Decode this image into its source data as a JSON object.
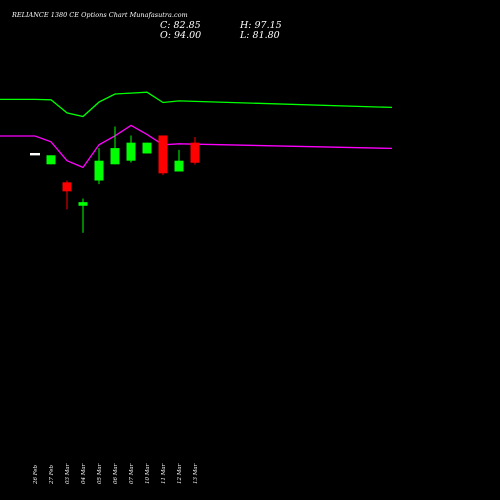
{
  "chart_data": {
    "type": "candlestick",
    "title": "RELIANCE 1380  CE Options  Chart  Munafasutra.com",
    "ohlc_readout": {
      "close": "C: 82.85",
      "open": "O: 94.00",
      "high": "H: 97.15",
      "low": "L: 81.80"
    },
    "categories": [
      "26 Feb",
      "27 Feb",
      "03 Mar",
      "04 Mar",
      "05 Mar",
      "06 Mar",
      "07 Mar",
      "10 Mar",
      "11 Mar",
      "12 Mar",
      "13 Mar"
    ],
    "candles": [
      {
        "date": "26 Feb",
        "open": 88.0,
        "high": 88.0,
        "low": 88.0,
        "close": 88.0
      },
      {
        "date": "27 Feb",
        "open": 82.0,
        "high": 87.0,
        "low": 82.0,
        "close": 87.0
      },
      {
        "date": "03 Mar",
        "open": 72.0,
        "high": 73.0,
        "low": 57.0,
        "close": 67.0
      },
      {
        "date": "04 Mar",
        "open": 59.0,
        "high": 63.0,
        "low": 44.0,
        "close": 61.0
      },
      {
        "date": "05 Mar",
        "open": 73.0,
        "high": 91.0,
        "low": 71.0,
        "close": 84.0
      },
      {
        "date": "06 Mar",
        "open": 82.0,
        "high": 103.0,
        "low": 82.0,
        "close": 91.0
      },
      {
        "date": "07 Mar",
        "open": 84.0,
        "high": 98.0,
        "low": 83.0,
        "close": 94.0
      },
      {
        "date": "10 Mar",
        "open": 88.0,
        "high": 94.0,
        "low": 88.0,
        "close": 94.0
      },
      {
        "date": "11 Mar",
        "open": 98.0,
        "high": 98.0,
        "low": 76.0,
        "close": 77.0
      },
      {
        "date": "12 Mar",
        "open": 78.0,
        "high": 90.0,
        "low": 78.0,
        "close": 84.0
      },
      {
        "date": "13 Mar",
        "open": 94.0,
        "high": 97.15,
        "low": 81.8,
        "close": 82.85
      }
    ],
    "band_series": [
      {
        "color": "#00ff00",
        "points": [
          [
            -1,
            118
          ],
          [
            0,
            118
          ],
          [
            1,
            117.8
          ],
          [
            2,
            110.5
          ],
          [
            3,
            108.5
          ],
          [
            4,
            116.5
          ],
          [
            5,
            121
          ],
          [
            6,
            121.5
          ],
          [
            7,
            122
          ],
          [
            8,
            116.3
          ],
          [
            9,
            117.2
          ],
          [
            10,
            113.6
          ]
        ]
      },
      {
        "color": "#ff00ff",
        "points": [
          [
            -1,
            97.7
          ],
          [
            0,
            97.7
          ],
          [
            1,
            94.5
          ],
          [
            2,
            84
          ],
          [
            3,
            80.3
          ],
          [
            4,
            92.8
          ],
          [
            5,
            97.8
          ],
          [
            6,
            103.6
          ],
          [
            7,
            98.6
          ],
          [
            8,
            92.8
          ],
          [
            9,
            93.4
          ],
          [
            10,
            90.8
          ]
        ]
      }
    ],
    "ylim": [
      30,
      130
    ],
    "colors": {
      "up": "#00ff00",
      "down": "#ff0000",
      "background": "#000000",
      "text": "#ffffff"
    },
    "grid": false
  }
}
